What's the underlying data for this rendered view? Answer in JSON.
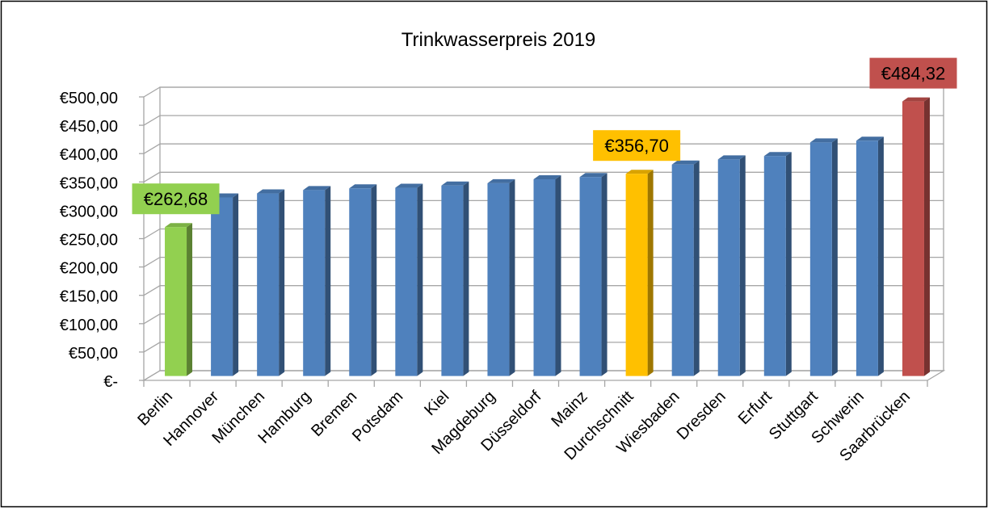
{
  "chart_data": {
    "type": "bar",
    "title": "Trinkwasserpreis 2019",
    "xlabel": "",
    "ylabel": "",
    "categories": [
      "Berlin",
      "Hannover",
      "München",
      "Hamburg",
      "Bremen",
      "Potsdam",
      "Kiel",
      "Magdeburg",
      "Düsseldorf",
      "Mainz",
      "Durchschnitt",
      "Wiesbaden",
      "Dresden",
      "Erfurt",
      "Stuttgart",
      "Schwerin",
      "Saarbrücken"
    ],
    "values": [
      262.68,
      315,
      322,
      328,
      331,
      332,
      336,
      340,
      347,
      351,
      356.7,
      373,
      382,
      388,
      412,
      415,
      484.32
    ],
    "bar_colors": [
      "#92D050",
      "#4F81BD",
      "#4F81BD",
      "#4F81BD",
      "#4F81BD",
      "#4F81BD",
      "#4F81BD",
      "#4F81BD",
      "#4F81BD",
      "#4F81BD",
      "#FFC000",
      "#4F81BD",
      "#4F81BD",
      "#4F81BD",
      "#4F81BD",
      "#4F81BD",
      "#C0504D"
    ],
    "ylim": [
      0,
      500
    ],
    "y_ticks": [
      0,
      50,
      100,
      150,
      200,
      250,
      300,
      350,
      400,
      450,
      500
    ],
    "y_tick_labels": [
      "€-",
      "€50,00",
      "€100,00",
      "€150,00",
      "€200,00",
      "€250,00",
      "€300,00",
      "€350,00",
      "€400,00",
      "€450,00",
      "€500,00"
    ],
    "grid": true,
    "style": "3d-column",
    "data_labels": [
      {
        "category": "Berlin",
        "text": "€262,68",
        "color": "#92D050"
      },
      {
        "category": "Durchschnitt",
        "text": "€356,70",
        "color": "#FFC000"
      },
      {
        "category": "Saarbrücken",
        "text": "€484,32",
        "color": "#C0504D"
      }
    ]
  }
}
